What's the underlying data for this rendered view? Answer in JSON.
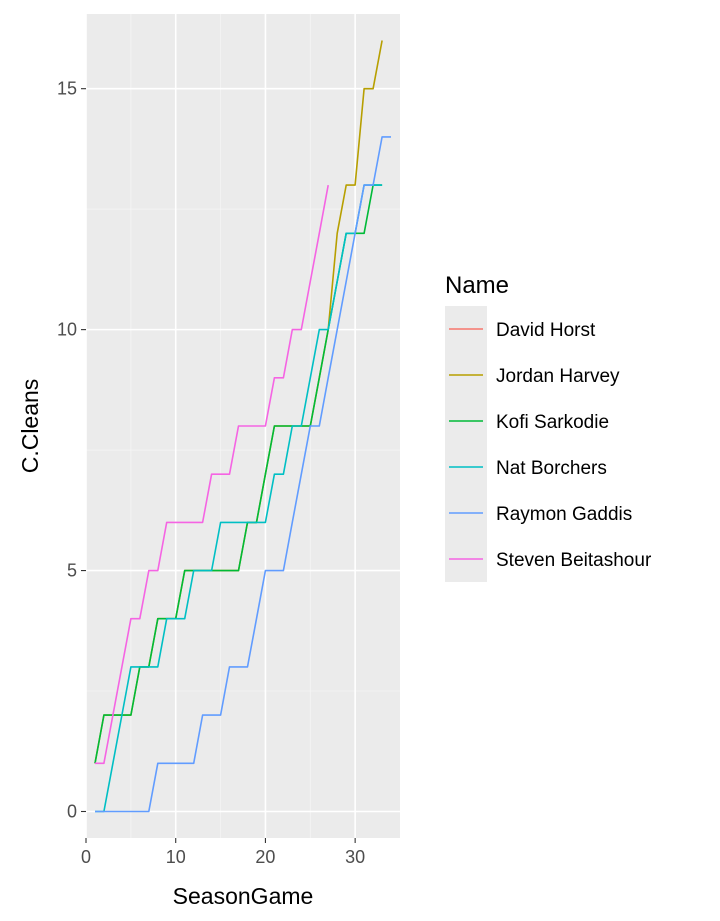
{
  "chart_data": {
    "type": "line",
    "xlabel": "SeasonGame",
    "ylabel": "C.Cleans",
    "legend_title": "Name",
    "legend_position": "right",
    "grid": true,
    "xlim": [
      0,
      35
    ],
    "ylim": [
      -0.55,
      16.55
    ],
    "x_ticks": [
      0,
      10,
      20,
      30
    ],
    "y_ticks": [
      0,
      5,
      10,
      15
    ],
    "series": [
      {
        "name": "David Horst",
        "color": "#F8766D",
        "x": [],
        "y": []
      },
      {
        "name": "Jordan Harvey",
        "color": "#B79F00",
        "x": [
          1,
          2,
          3,
          4,
          5,
          6,
          7,
          8,
          9,
          10,
          11,
          12,
          13,
          14,
          15,
          16,
          17,
          18,
          19,
          20,
          21,
          22,
          23,
          24,
          25,
          26,
          27,
          28,
          29,
          30,
          31,
          32,
          33
        ],
        "y": [
          1,
          2,
          2,
          2,
          2,
          3,
          3,
          4,
          4,
          4,
          5,
          5,
          5,
          5,
          5,
          5,
          5,
          6,
          6,
          7,
          8,
          8,
          8,
          8,
          8,
          9,
          10,
          12,
          13,
          13,
          15,
          15,
          16
        ]
      },
      {
        "name": "Kofi Sarkodie",
        "color": "#00BA38",
        "x": [
          1,
          2,
          3,
          4,
          5,
          6,
          7,
          8,
          9,
          10,
          11,
          12,
          13,
          14,
          15,
          16,
          17,
          18,
          19,
          20,
          21,
          22,
          23,
          24,
          25,
          26,
          27,
          28,
          29,
          30,
          31,
          32,
          33
        ],
        "y": [
          1,
          2,
          2,
          2,
          2,
          3,
          3,
          4,
          4,
          4,
          5,
          5,
          5,
          5,
          5,
          5,
          5,
          6,
          6,
          7,
          8,
          8,
          8,
          8,
          8,
          9,
          10,
          11,
          12,
          12,
          12,
          13,
          13
        ]
      },
      {
        "name": "Nat Borchers",
        "color": "#00BFC4",
        "x": [
          1,
          2,
          3,
          4,
          5,
          6,
          7,
          8,
          9,
          10,
          11,
          12,
          13,
          14,
          15,
          16,
          17,
          18,
          19,
          20,
          21,
          22,
          23,
          24,
          25,
          26,
          27,
          28,
          29,
          30,
          31,
          32,
          33
        ],
        "y": [
          0,
          0,
          1,
          2,
          3,
          3,
          3,
          3,
          4,
          4,
          4,
          5,
          5,
          5,
          6,
          6,
          6,
          6,
          6,
          6,
          7,
          7,
          8,
          8,
          9,
          10,
          10,
          11,
          12,
          12,
          13,
          13,
          13
        ]
      },
      {
        "name": "Raymon Gaddis",
        "color": "#619CFF",
        "x": [
          1,
          2,
          3,
          4,
          5,
          6,
          7,
          8,
          9,
          10,
          11,
          12,
          13,
          14,
          15,
          16,
          17,
          18,
          19,
          20,
          21,
          22,
          23,
          24,
          25,
          26,
          27,
          28,
          29,
          30,
          31,
          32,
          33,
          34
        ],
        "y": [
          0,
          0,
          0,
          0,
          0,
          0,
          0,
          1,
          1,
          1,
          1,
          1,
          2,
          2,
          2,
          3,
          3,
          3,
          4,
          5,
          5,
          5,
          6,
          7,
          8,
          8,
          9,
          10,
          11,
          12,
          13,
          13,
          14,
          14
        ]
      },
      {
        "name": "Steven Beitashour",
        "color": "#F564E3",
        "x": [
          1,
          2,
          3,
          4,
          5,
          6,
          7,
          8,
          9,
          10,
          11,
          12,
          13,
          14,
          15,
          16,
          17,
          18,
          19,
          20,
          21,
          22,
          23,
          24,
          25,
          26,
          27
        ],
        "y": [
          1,
          1,
          2,
          3,
          4,
          4,
          5,
          5,
          6,
          6,
          6,
          6,
          6,
          7,
          7,
          7,
          8,
          8,
          8,
          8,
          9,
          9,
          10,
          10,
          11,
          12,
          13
        ]
      }
    ]
  }
}
